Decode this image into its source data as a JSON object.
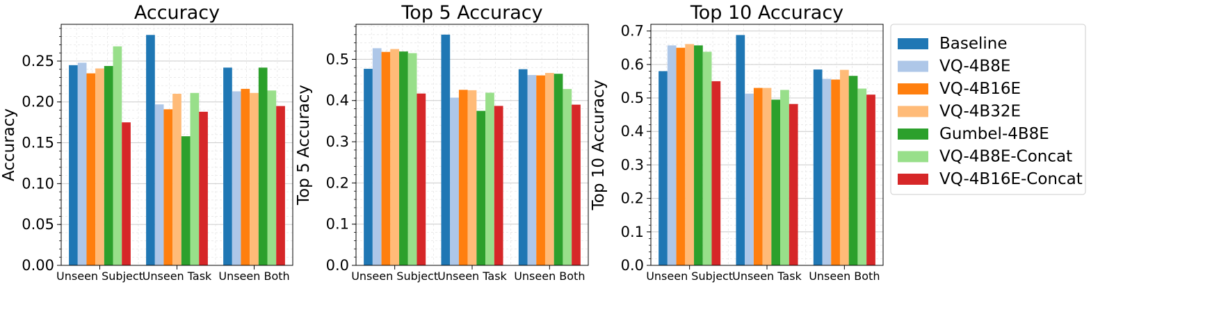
{
  "legend_position": "right",
  "chart_data": [
    {
      "type": "bar",
      "title": "Accuracy",
      "ylabel": "Accuracy",
      "xlabel": "",
      "ylim": [
        0,
        0.295
      ],
      "yticks": [
        "0.00",
        "0.05",
        "0.10",
        "0.15",
        "0.20",
        "0.25"
      ],
      "grid": true,
      "categories": [
        "Unseen Subject",
        "Unseen Task",
        "Unseen Both"
      ],
      "series": [
        {
          "name": "Baseline",
          "values": [
            0.245,
            0.282,
            0.242
          ]
        },
        {
          "name": "VQ-4B8E",
          "values": [
            0.248,
            0.197,
            0.213
          ]
        },
        {
          "name": "VQ-4B16E",
          "values": [
            0.235,
            0.191,
            0.216
          ]
        },
        {
          "name": "VQ-4B32E",
          "values": [
            0.241,
            0.21,
            0.211
          ]
        },
        {
          "name": "Gumbel-4B8E",
          "values": [
            0.244,
            0.158,
            0.242
          ]
        },
        {
          "name": "VQ-4B8E-Concat",
          "values": [
            0.268,
            0.211,
            0.214
          ]
        },
        {
          "name": "VQ-4B16E-Concat",
          "values": [
            0.175,
            0.188,
            0.195
          ]
        }
      ]
    },
    {
      "type": "bar",
      "title": "Top 5 Accuracy",
      "ylabel": "Top 5 Accuracy",
      "xlabel": "",
      "ylim": [
        0,
        0.585
      ],
      "yticks": [
        "0.0",
        "0.1",
        "0.2",
        "0.3",
        "0.4",
        "0.5"
      ],
      "grid": true,
      "categories": [
        "Unseen Subject",
        "Unseen Task",
        "Unseen Both"
      ],
      "series": [
        {
          "name": "Baseline",
          "values": [
            0.477,
            0.56,
            0.476
          ]
        },
        {
          "name": "VQ-4B8E",
          "values": [
            0.527,
            0.407,
            0.462
          ]
        },
        {
          "name": "VQ-4B16E",
          "values": [
            0.518,
            0.426,
            0.461
          ]
        },
        {
          "name": "VQ-4B32E",
          "values": [
            0.525,
            0.425,
            0.467
          ]
        },
        {
          "name": "Gumbel-4B8E",
          "values": [
            0.519,
            0.375,
            0.465
          ]
        },
        {
          "name": "VQ-4B8E-Concat",
          "values": [
            0.515,
            0.419,
            0.428
          ]
        },
        {
          "name": "VQ-4B16E-Concat",
          "values": [
            0.417,
            0.387,
            0.39
          ]
        }
      ]
    },
    {
      "type": "bar",
      "title": "Top 10 Accuracy",
      "ylabel": "Top 10 Accuracy",
      "xlabel": "",
      "ylim": [
        0,
        0.72
      ],
      "yticks": [
        "0.0",
        "0.1",
        "0.2",
        "0.3",
        "0.4",
        "0.5",
        "0.6",
        "0.7"
      ],
      "grid": true,
      "categories": [
        "Unseen Subject",
        "Unseen Task",
        "Unseen Both"
      ],
      "series": [
        {
          "name": "Baseline",
          "values": [
            0.58,
            0.688,
            0.585
          ]
        },
        {
          "name": "VQ-4B8E",
          "values": [
            0.657,
            0.513,
            0.557
          ]
        },
        {
          "name": "VQ-4B16E",
          "values": [
            0.65,
            0.53,
            0.555
          ]
        },
        {
          "name": "VQ-4B32E",
          "values": [
            0.661,
            0.53,
            0.584
          ]
        },
        {
          "name": "Gumbel-4B8E",
          "values": [
            0.657,
            0.495,
            0.566
          ]
        },
        {
          "name": "VQ-4B8E-Concat",
          "values": [
            0.638,
            0.524,
            0.528
          ]
        },
        {
          "name": "VQ-4B16E-Concat",
          "values": [
            0.55,
            0.482,
            0.51
          ]
        }
      ]
    }
  ],
  "colors": [
    "#1f77b4",
    "#aec7e8",
    "#ff7f0e",
    "#ffbb78",
    "#2ca02c",
    "#98df8a",
    "#d62728"
  ]
}
